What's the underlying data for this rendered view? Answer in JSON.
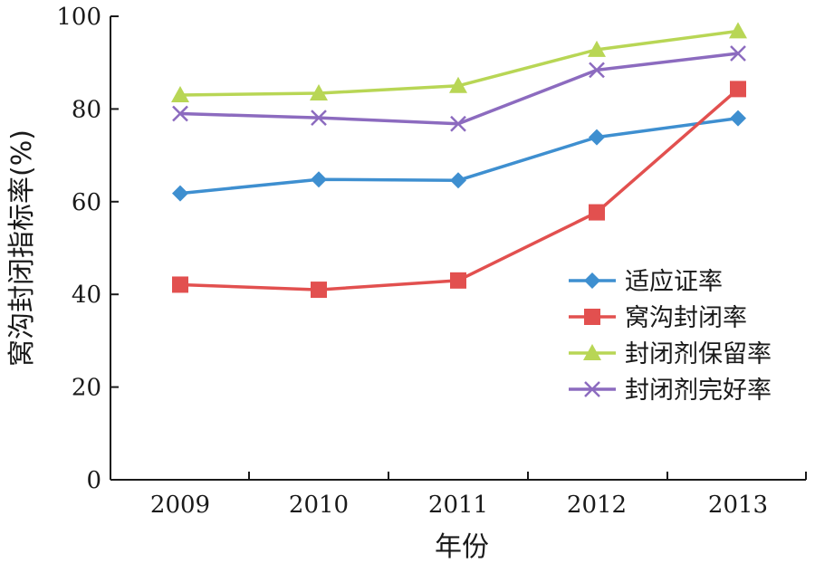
{
  "chart_data": {
    "type": "line",
    "title": "",
    "xlabel": "年份",
    "ylabel": "窝沟封闭指标率(%)",
    "categories": [
      "2009",
      "2010",
      "2011",
      "2012",
      "2013"
    ],
    "ylim": [
      0,
      100
    ],
    "yticks": [
      "0",
      "20",
      "40",
      "60",
      "80",
      "100"
    ],
    "grid": false,
    "legend_position": "right",
    "series": [
      {
        "name": "适应证率",
        "values": [
          61.8,
          64.8,
          64.6,
          73.9,
          78.0
        ],
        "color": "#3e8fd0",
        "marker": "diamond"
      },
      {
        "name": "窝沟封闭率",
        "values": [
          42.1,
          41.0,
          43.0,
          57.7,
          84.3
        ],
        "color": "#e2504f",
        "marker": "square"
      },
      {
        "name": "封闭剂保留率",
        "values": [
          83.0,
          83.4,
          85.0,
          92.8,
          96.8
        ],
        "color": "#b8d655",
        "marker": "triangle"
      },
      {
        "name": "封闭剂完好率",
        "values": [
          79.0,
          78.1,
          76.8,
          88.4,
          92.0
        ],
        "color": "#8c6bbf",
        "marker": "cross"
      }
    ]
  }
}
